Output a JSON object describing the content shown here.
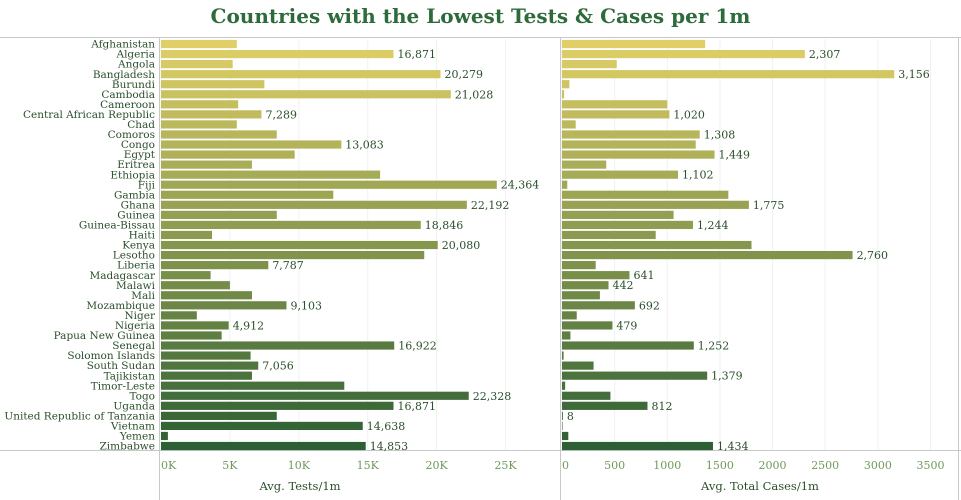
{
  "title": "Countries with the Lowest Tests & Cases per 1m",
  "chart_data": {
    "type": "bar",
    "orientation": "horizontal",
    "categories": [
      "Afghanistan",
      "Algeria",
      "Angola",
      "Bangladesh",
      "Burundi",
      "Cambodia",
      "Cameroon",
      "Central African Republic",
      "Chad",
      "Comoros",
      "Congo",
      "Egypt",
      "Eritrea",
      "Ethiopia",
      "Fiji",
      "Gambia",
      "Ghana",
      "Guinea",
      "Guinea-Bissau",
      "Haiti",
      "Kenya",
      "Lesotho",
      "Liberia",
      "Madagascar",
      "Malawi",
      "Mali",
      "Mozambique",
      "Niger",
      "Nigeria",
      "Papua New Guinea",
      "Senegal",
      "Solomon Islands",
      "South Sudan",
      "Tajikistan",
      "Timor-Leste",
      "Togo",
      "Uganda",
      "United Republic of Tanzania",
      "Vietnam",
      "Yemen",
      "Zimbabwe"
    ],
    "series": [
      {
        "values": [
          5500,
          16871,
          5200,
          20279,
          7500,
          21028,
          5600,
          7289,
          5500,
          8400,
          13083,
          9700,
          6600,
          15900,
          24364,
          12500,
          22192,
          8400,
          18846,
          3700,
          20080,
          19100,
          7787,
          3600,
          5000,
          6600,
          9103,
          2600,
          4912,
          4400,
          16922,
          6500,
          7056,
          6600,
          13300,
          22328,
          16871,
          8400,
          14638,
          500,
          14853
        ],
        "labels": [
          "",
          "16,871",
          "",
          "20,279",
          "",
          "21,028",
          "",
          "7,289",
          "",
          "",
          "13,083",
          "",
          "",
          "",
          "24,364",
          "",
          "22,192",
          "",
          "18,846",
          "",
          "20,080",
          "",
          "7,787",
          "",
          "",
          "",
          "9,103",
          "",
          "4,912",
          "",
          "16,922",
          "",
          "7,056",
          "",
          "",
          "22,328",
          "16,871",
          "",
          "14,638",
          "",
          "14,853"
        ]
      },
      {
        "values": [
          1360,
          2307,
          520,
          3156,
          70,
          20,
          1000,
          1020,
          130,
          1308,
          1270,
          1449,
          420,
          1102,
          50,
          1580,
          1775,
          1060,
          1244,
          890,
          1800,
          2760,
          320,
          641,
          442,
          360,
          692,
          140,
          479,
          80,
          1252,
          15,
          300,
          1379,
          30,
          460,
          812,
          8,
          5,
          60,
          1434
        ],
        "labels": [
          "",
          "2,307",
          "",
          "3,156",
          "",
          "",
          "",
          "1,020",
          "",
          "1,308",
          "",
          "1,449",
          "",
          "1,102",
          "",
          "",
          "1,775",
          "",
          "1,244",
          "",
          "",
          "2,760",
          "",
          "641",
          "442",
          "",
          "692",
          "",
          "479",
          "",
          "1,252",
          "",
          "",
          "1,379",
          "",
          "",
          "812",
          "8",
          "",
          "",
          "1,434"
        ]
      }
    ],
    "xlabel_left": "Avg. Tests/1m",
    "xlabel_right": "Avg. Total Cases/1m",
    "left_ticks": [
      "0K",
      "5K",
      "10K",
      "15K",
      "20K",
      "25K"
    ],
    "right_ticks": [
      "0",
      "500",
      "1000",
      "1500",
      "2000",
      "2500",
      "3000",
      "3500"
    ],
    "left_xlim": [
      0,
      27500
    ],
    "right_xlim": [
      0,
      3600
    ],
    "color_scale": [
      "#e0cf66",
      "#2c5f34"
    ]
  }
}
